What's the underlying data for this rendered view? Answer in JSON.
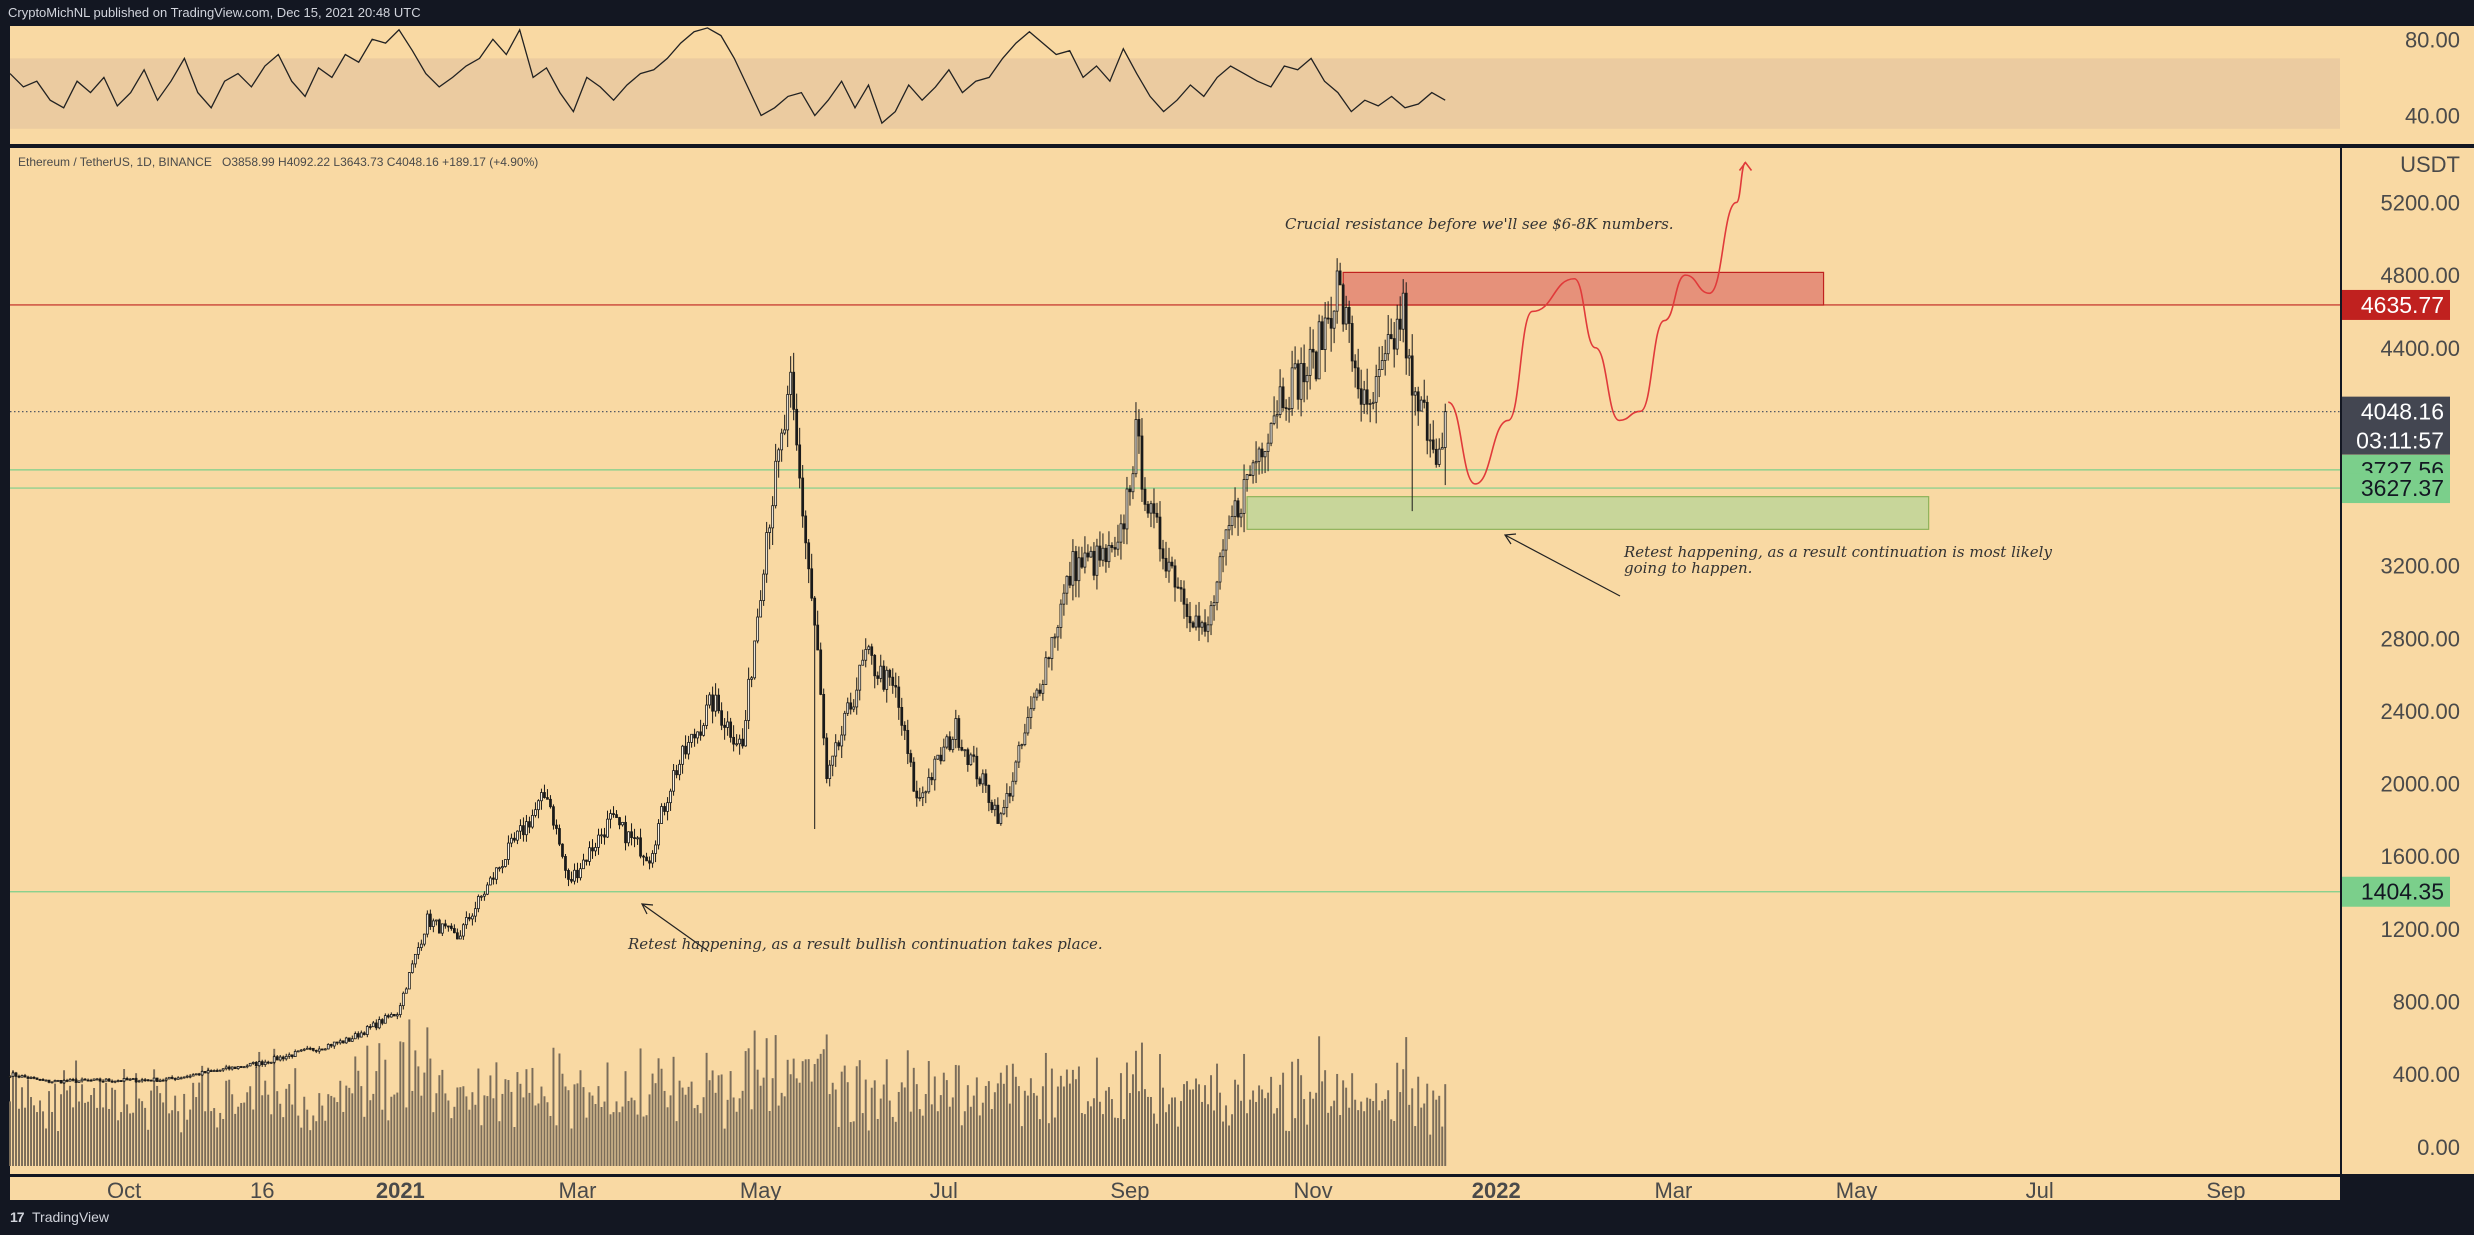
{
  "header": {
    "publish_line": "CryptoMichNL published on TradingView.com, Dec 15, 2021 20:48 UTC"
  },
  "footer": {
    "logo_glyph": "𝟏𝟕",
    "brand": "TradingView"
  },
  "colors": {
    "background": "#f9d9a3",
    "frame": "#131722",
    "candle": "#1a1a1a",
    "volume": "#7b6d5a",
    "rsi_band": "#ebcba0",
    "resistance_zone": "#e6917a",
    "support_zone": "#c8d69a",
    "projection": "#e03a3a",
    "price_tag_red": "#c0211f",
    "price_tag_dark": "#434651",
    "price_tag_green": "#7bcf8b"
  },
  "chart_data": {
    "type": "candlestick",
    "symbol_line": "Ethereum / TetherUS, 1D, BINANCE",
    "ohlc": {
      "open_label": "O",
      "open": "3858.99",
      "high_label": "H",
      "high": "4092.22",
      "low_label": "L",
      "low": "3643.73",
      "close_label": "C",
      "close": "4048.16",
      "change": "+189.17 (+4.90%)"
    },
    "currency": "USDT",
    "y_ticks": [
      "5200.00",
      "4800.00",
      "4400.00",
      "3200.00",
      "2800.00",
      "2400.00",
      "2000.00",
      "1600.00",
      "1200.00",
      "800.00",
      "400.00",
      "0.00"
    ],
    "x_ticks": [
      "Oct",
      "16",
      "2021",
      "Mar",
      "May",
      "Jul",
      "Sep",
      "Nov",
      "2022",
      "Mar",
      "May",
      "Jul",
      "Sep"
    ],
    "x_tick_dates": [
      "2020-10-01",
      "2020-11-16",
      "2021-01-01",
      "2021-03-01",
      "2021-05-01",
      "2021-07-01",
      "2021-09-01",
      "2021-11-01",
      "2022-01-01",
      "2022-03-01",
      "2022-05-01",
      "2022-07-01",
      "2022-09-01"
    ],
    "ylim": [
      -150,
      5500
    ],
    "xlim": [
      "2020-08-24",
      "2022-10-09"
    ],
    "price_key_points": [
      {
        "date": "2020-08-24",
        "close": 400
      },
      {
        "date": "2020-09-05",
        "close": 360
      },
      {
        "date": "2020-10-15",
        "close": 370
      },
      {
        "date": "2020-11-15",
        "close": 460
      },
      {
        "date": "2020-12-15",
        "close": 590
      },
      {
        "date": "2020-12-31",
        "close": 740
      },
      {
        "date": "2021-01-10",
        "close": 1250
      },
      {
        "date": "2021-01-20",
        "close": 1150
      },
      {
        "date": "2021-02-05",
        "close": 1600
      },
      {
        "date": "2021-02-19",
        "close": 1950
      },
      {
        "date": "2021-02-26",
        "close": 1450
      },
      {
        "date": "2021-03-12",
        "close": 1800
      },
      {
        "date": "2021-03-25",
        "close": 1600
      },
      {
        "date": "2021-04-02",
        "close": 2050
      },
      {
        "date": "2021-04-15",
        "close": 2450
      },
      {
        "date": "2021-04-25",
        "close": 2200
      },
      {
        "date": "2021-05-03",
        "close": 3400
      },
      {
        "date": "2021-05-11",
        "close": 4150
      },
      {
        "date": "2021-05-20",
        "close": 2700
      },
      {
        "date": "2021-05-23",
        "close": 2000
      },
      {
        "date": "2021-06-05",
        "close": 2700
      },
      {
        "date": "2021-06-15",
        "close": 2500
      },
      {
        "date": "2021-06-22",
        "close": 1900
      },
      {
        "date": "2021-07-05",
        "close": 2300
      },
      {
        "date": "2021-07-20",
        "close": 1800
      },
      {
        "date": "2021-08-01",
        "close": 2500
      },
      {
        "date": "2021-08-13",
        "close": 3200
      },
      {
        "date": "2021-08-28",
        "close": 3250
      },
      {
        "date": "2021-09-03",
        "close": 3900
      },
      {
        "date": "2021-09-08",
        "close": 3450
      },
      {
        "date": "2021-09-20",
        "close": 3000
      },
      {
        "date": "2021-09-26",
        "close": 2800
      },
      {
        "date": "2021-10-05",
        "close": 3450
      },
      {
        "date": "2021-10-21",
        "close": 4150
      },
      {
        "date": "2021-11-01",
        "close": 4300
      },
      {
        "date": "2021-11-09",
        "close": 4750
      },
      {
        "date": "2021-11-19",
        "close": 4000
      },
      {
        "date": "2021-12-01",
        "close": 4600
      },
      {
        "date": "2021-12-04",
        "close": 4100
      },
      {
        "date": "2021-12-09",
        "close": 4000
      },
      {
        "date": "2021-12-14",
        "close": 3780
      },
      {
        "date": "2021-12-15",
        "close": 4048
      }
    ],
    "wicks": [
      {
        "date": "2021-05-12",
        "high": 4372
      },
      {
        "date": "2021-05-19",
        "low": 1750
      },
      {
        "date": "2021-11-10",
        "high": 4868
      },
      {
        "date": "2021-12-01",
        "high": 4778
      },
      {
        "date": "2021-12-04",
        "low": 3500
      }
    ],
    "rsi": {
      "y_ticks": [
        "80.00",
        "40.00"
      ],
      "ylim": [
        25,
        87
      ],
      "band": [
        33,
        70
      ],
      "values": [
        62,
        55,
        58,
        48,
        44,
        58,
        52,
        60,
        45,
        52,
        64,
        48,
        58,
        70,
        52,
        44,
        58,
        62,
        55,
        66,
        72,
        58,
        50,
        65,
        60,
        72,
        68,
        80,
        78,
        85,
        74,
        62,
        55,
        60,
        66,
        70,
        80,
        72,
        85,
        60,
        65,
        52,
        42,
        60,
        55,
        48,
        56,
        62,
        64,
        70,
        78,
        84,
        86,
        82,
        70,
        55,
        40,
        44,
        50,
        52,
        40,
        48,
        58,
        44,
        56,
        36,
        42,
        56,
        48,
        55,
        64,
        52,
        58,
        60,
        70,
        78,
        84,
        78,
        72,
        74,
        60,
        66,
        58,
        75,
        62,
        50,
        42,
        48,
        56,
        50,
        60,
        66,
        62,
        58,
        55,
        66,
        64,
        70,
        58,
        52,
        42,
        48,
        45,
        50,
        44,
        46,
        52,
        48
      ]
    },
    "projection_points": [
      {
        "date": "2021-12-16",
        "close": 4100
      },
      {
        "date": "2021-12-25",
        "close": 3650
      },
      {
        "date": "2022-01-05",
        "close": 4000
      },
      {
        "date": "2022-01-13",
        "close": 4600
      },
      {
        "date": "2022-01-27",
        "close": 4780
      },
      {
        "date": "2022-02-03",
        "close": 4400
      },
      {
        "date": "2022-02-11",
        "close": 4000
      },
      {
        "date": "2022-02-18",
        "close": 4050
      },
      {
        "date": "2022-02-26",
        "close": 4550
      },
      {
        "date": "2022-03-05",
        "close": 4800
      },
      {
        "date": "2022-03-13",
        "close": 4700
      },
      {
        "date": "2022-03-22",
        "close": 5200
      },
      {
        "date": "2022-03-25",
        "close": 5420
      }
    ],
    "zones": {
      "resistance": {
        "from": "2021-11-11",
        "to": "2022-04-20",
        "top": 4815,
        "bottom": 4635
      },
      "support": {
        "from": "2021-10-10",
        "to": "2022-05-25",
        "top": 3580,
        "bottom": 3400
      }
    },
    "horizontal_lines": [
      {
        "price": 4635.77,
        "color": "#c0211f"
      },
      {
        "price": 4048.16,
        "color": "#555a66",
        "dotted": true
      },
      {
        "price": 3727.56,
        "color": "#7bcf8b"
      },
      {
        "price": 3627.37,
        "color": "#7bcf8b"
      },
      {
        "price": 1404.35,
        "color": "#7bcf8b"
      }
    ],
    "price_tags": [
      {
        "label": "4635.77",
        "price": 4635.77,
        "style": "red"
      },
      {
        "label": "4048.16",
        "price": 4048.16,
        "style": "dark",
        "countdown": "03:11:57"
      },
      {
        "label": "3727.56",
        "price": 3727.56,
        "style": "green"
      },
      {
        "label": "3627.37",
        "price": 3627.37,
        "style": "green"
      },
      {
        "label": "1404.35",
        "price": 1404.35,
        "style": "green"
      }
    ],
    "annotations": [
      {
        "id": "resistance-note",
        "text": "Crucial resistance before we'll see $6-8K numbers."
      },
      {
        "id": "support-note-1",
        "text": "Retest happening, as a result continuation is most likely"
      },
      {
        "id": "support-note-2",
        "text": "going to happen."
      },
      {
        "id": "march-note",
        "text": "Retest happening, as a result bullish continuation takes place."
      }
    ]
  }
}
